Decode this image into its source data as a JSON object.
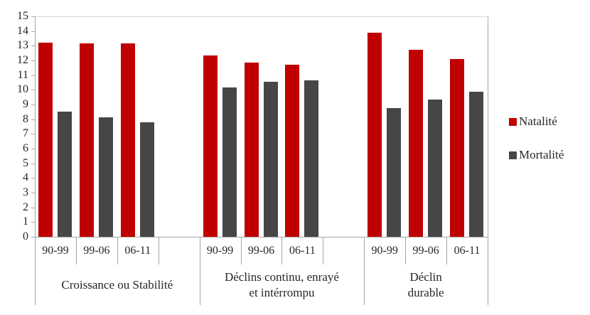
{
  "legend": {
    "items": [
      {
        "id": "natalite",
        "label": "Natalité",
        "color": "#c00000"
      },
      {
        "id": "mortalite",
        "label": "Mortalité",
        "color": "#464646"
      }
    ]
  },
  "chart_data": {
    "type": "bar",
    "title": "",
    "xlabel": "",
    "ylabel": "",
    "ylim": [
      0,
      15
    ],
    "y_axis": {
      "min": 0,
      "max": 15,
      "step": 1,
      "tick_labels": [
        "0",
        "1",
        "2",
        "3",
        "4",
        "5",
        "6",
        "7",
        "8",
        "9",
        "10",
        "11",
        "12",
        "13",
        "14",
        "15"
      ]
    },
    "grid": "top-border-only",
    "legend_position": "right",
    "series_names": [
      "Natalité",
      "Mortalité"
    ],
    "series_colors": [
      "#c00000",
      "#464646"
    ],
    "periods": [
      "90-99",
      "99-06",
      "06-11"
    ],
    "groups": [
      {
        "label": "Croissance ou Stabilité",
        "label_lines": [
          "Croissance ou Stabilité"
        ],
        "periods": [
          "90-99",
          "99-06",
          "06-11"
        ],
        "series": [
          {
            "name": "Natalité",
            "values": [
              13.2,
              13.15,
              13.15
            ]
          },
          {
            "name": "Mortalité",
            "values": [
              8.5,
              8.15,
              7.8
            ]
          }
        ]
      },
      {
        "label": "Déclins continu, enrayé et intérrompu",
        "label_lines": [
          "Déclins continu, enrayé",
          "et intérrompu"
        ],
        "periods": [
          "90-99",
          "99-06",
          "06-11"
        ],
        "series": [
          {
            "name": "Natalité",
            "values": [
              12.35,
              11.85,
              11.7
            ]
          },
          {
            "name": "Mortalité",
            "values": [
              10.15,
              10.55,
              10.65
            ]
          }
        ]
      },
      {
        "label": "Déclin durable",
        "label_lines": [
          "Déclin",
          "durable"
        ],
        "periods": [
          "90-99",
          "99-06",
          "06-11"
        ],
        "series": [
          {
            "name": "Natalité",
            "values": [
              13.9,
              12.75,
              12.1
            ]
          },
          {
            "name": "Mortalité",
            "values": [
              8.75,
              9.35,
              9.85
            ]
          }
        ]
      }
    ]
  }
}
